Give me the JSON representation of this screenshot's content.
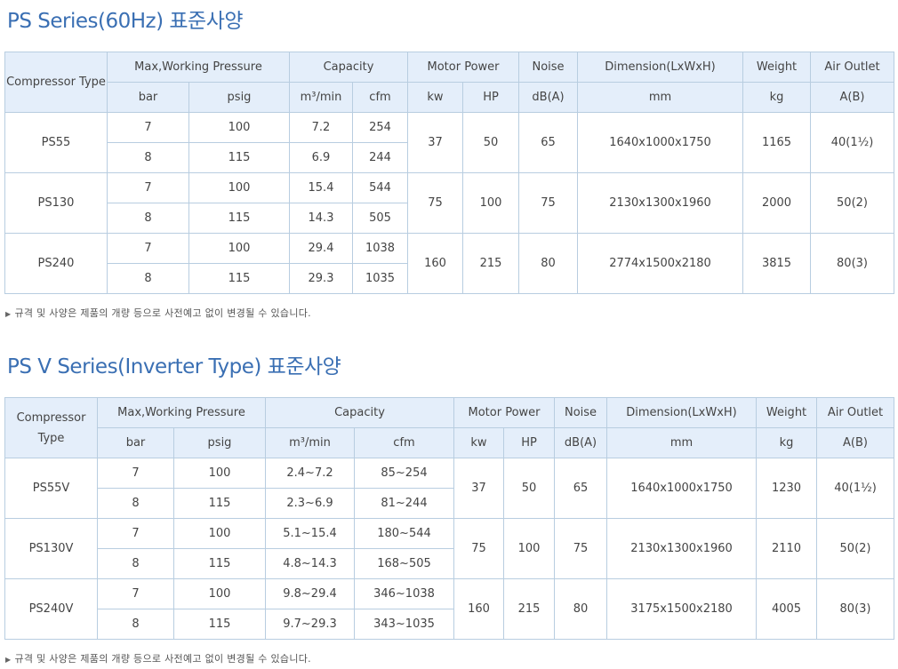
{
  "sections": [
    {
      "title": "PS Series(60Hz) 표준사양",
      "note": "규격 및 사양은 제품의 개량 등으로 사전예고 없이 변경될 수 있습니다.",
      "header_top": {
        "type": "Compressor Type",
        "pressure": "Max,Working Pressure",
        "capacity": "Capacity",
        "motor": "Motor Power",
        "noise": "Noise",
        "dimension": "Dimension(LxWxH)",
        "weight": "Weight",
        "outlet": "Air Outlet"
      },
      "header_units": {
        "bar": "bar",
        "psig": "psig",
        "m3min": "m³/min",
        "cfm": "cfm",
        "kw": "kw",
        "hp": "HP",
        "db": "dB(A)",
        "mm": "mm",
        "kg": "kg",
        "ab": "A(B)"
      },
      "models": [
        {
          "type": "PS55",
          "kw": "37",
          "hp": "50",
          "noise": "65",
          "dim": "1640x1000x1750",
          "weight": "1165",
          "outlet": "40(1½)",
          "rows": [
            {
              "bar": "7",
              "psig": "100",
              "m3min": "7.2",
              "cfm": "254"
            },
            {
              "bar": "8",
              "psig": "115",
              "m3min": "6.9",
              "cfm": "244"
            }
          ]
        },
        {
          "type": "PS130",
          "kw": "75",
          "hp": "100",
          "noise": "75",
          "dim": "2130x1300x1960",
          "weight": "2000",
          "outlet": "50(2)",
          "rows": [
            {
              "bar": "7",
              "psig": "100",
              "m3min": "15.4",
              "cfm": "544"
            },
            {
              "bar": "8",
              "psig": "115",
              "m3min": "14.3",
              "cfm": "505"
            }
          ]
        },
        {
          "type": "PS240",
          "kw": "160",
          "hp": "215",
          "noise": "80",
          "dim": "2774x1500x2180",
          "weight": "3815",
          "outlet": "80(3)",
          "rows": [
            {
              "bar": "7",
              "psig": "100",
              "m3min": "29.4",
              "cfm": "1038"
            },
            {
              "bar": "8",
              "psig": "115",
              "m3min": "29.3",
              "cfm": "1035"
            }
          ]
        }
      ]
    },
    {
      "title": "PS V Series(Inverter Type) 표준사양",
      "note": "규격 및 사양은 제품의 개량 등으로 사전예고 없이 변경될 수 있습니다.",
      "header_top": {
        "type": "Compressor Type",
        "pressure": "Max,Working Pressure",
        "capacity": "Capacity",
        "motor": "Motor Power",
        "noise": "Noise",
        "dimension": "Dimension(LxWxH)",
        "weight": "Weight",
        "outlet": "Air Outlet"
      },
      "header_units": {
        "bar": "bar",
        "psig": "psig",
        "m3min": "m³/min",
        "cfm": "cfm",
        "kw": "kw",
        "hp": "HP",
        "db": "dB(A)",
        "mm": "mm",
        "kg": "kg",
        "ab": "A(B)"
      },
      "models": [
        {
          "type": "PS55V",
          "kw": "37",
          "hp": "50",
          "noise": "65",
          "dim": "1640x1000x1750",
          "weight": "1230",
          "outlet": "40(1½)",
          "rows": [
            {
              "bar": "7",
              "psig": "100",
              "m3min": "2.4~7.2",
              "cfm": "85~254"
            },
            {
              "bar": "8",
              "psig": "115",
              "m3min": "2.3~6.9",
              "cfm": "81~244"
            }
          ]
        },
        {
          "type": "PS130V",
          "kw": "75",
          "hp": "100",
          "noise": "75",
          "dim": "2130x1300x1960",
          "weight": "2110",
          "outlet": "50(2)",
          "rows": [
            {
              "bar": "7",
              "psig": "100",
              "m3min": "5.1~15.4",
              "cfm": "180~544"
            },
            {
              "bar": "8",
              "psig": "115",
              "m3min": "4.8~14.3",
              "cfm": "168~505"
            }
          ]
        },
        {
          "type": "PS240V",
          "kw": "160",
          "hp": "215",
          "noise": "80",
          "dim": "3175x1500x2180",
          "weight": "4005",
          "outlet": "80(3)",
          "rows": [
            {
              "bar": "7",
              "psig": "100",
              "m3min": "9.8~29.4",
              "cfm": "346~1038"
            },
            {
              "bar": "8",
              "psig": "115",
              "m3min": "9.7~29.3",
              "cfm": "343~1035"
            }
          ]
        }
      ]
    }
  ]
}
